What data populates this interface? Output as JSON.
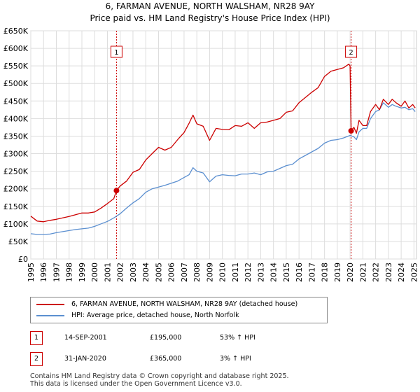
{
  "title_line1": "6, FARMAN AVENUE, NORTH WALSHAM, NR28 9AY",
  "title_line2": "Price paid vs. HM Land Registry's House Price Index (HPI)",
  "chart_data": {
    "type": "line",
    "title": "6, FARMAN AVENUE, NORTH WALSHAM, NR28 9AY — Price paid vs. HM Land Registry's House Price Index (HPI)",
    "xlabel": "",
    "ylabel": "",
    "xlim": [
      1995.0,
      2025.2
    ],
    "ylim": [
      0,
      650000
    ],
    "y_ticks": [
      0,
      50000,
      100000,
      150000,
      200000,
      250000,
      300000,
      350000,
      400000,
      450000,
      500000,
      550000,
      600000,
      650000
    ],
    "y_tick_labels": [
      "£0",
      "£50K",
      "£100K",
      "£150K",
      "£200K",
      "£250K",
      "£300K",
      "£350K",
      "£400K",
      "£450K",
      "£500K",
      "£550K",
      "£600K",
      "£650K"
    ],
    "x_ticks": [
      1995,
      1996,
      1997,
      1998,
      1999,
      2000,
      2001,
      2002,
      2003,
      2004,
      2005,
      2006,
      2007,
      2008,
      2009,
      2010,
      2011,
      2012,
      2013,
      2014,
      2015,
      2016,
      2017,
      2018,
      2019,
      2020,
      2021,
      2022,
      2023,
      2024,
      2025
    ],
    "x_tick_labels": [
      "1995",
      "1996",
      "1997",
      "1998",
      "1999",
      "2000",
      "2001",
      "2002",
      "2003",
      "2004",
      "2005",
      "2006",
      "2007",
      "2008",
      "2009",
      "2010",
      "2011",
      "2012",
      "2013",
      "2014",
      "2015",
      "2016",
      "2017",
      "2018",
      "2019",
      "2020",
      "2021",
      "2022",
      "2023",
      "2024",
      "2025"
    ],
    "grid": true,
    "legend_position": "below",
    "series": [
      {
        "name": "6, FARMAN AVENUE, NORTH WALSHAM, NR28 9AY (detached house)",
        "color": "#cc0000",
        "x": [
          1995.0,
          1995.5,
          1996.0,
          1996.5,
          1997.0,
          1997.5,
          1998.0,
          1998.5,
          1999.0,
          1999.5,
          2000.0,
          2000.5,
          2001.0,
          2001.5,
          2001.71,
          2002.0,
          2002.5,
          2003.0,
          2003.5,
          2004.0,
          2004.5,
          2005.0,
          2005.5,
          2006.0,
          2006.5,
          2007.0,
          2007.4,
          2007.7,
          2008.0,
          2008.5,
          2009.0,
          2009.5,
          2010.0,
          2010.5,
          2011.0,
          2011.5,
          2012.0,
          2012.5,
          2013.0,
          2013.5,
          2014.0,
          2014.5,
          2015.0,
          2015.5,
          2016.0,
          2016.5,
          2017.0,
          2017.5,
          2018.0,
          2018.5,
          2019.0,
          2019.5,
          2019.9,
          2020.0,
          2020.08,
          2020.3,
          2020.5,
          2020.7,
          2021.0,
          2021.3,
          2021.6,
          2022.0,
          2022.3,
          2022.6,
          2023.0,
          2023.3,
          2023.6,
          2024.0,
          2024.3,
          2024.6,
          2024.9,
          2025.1
        ],
        "values": [
          122000,
          108000,
          106000,
          110000,
          113000,
          117000,
          121000,
          126000,
          131000,
          131000,
          134000,
          145000,
          158000,
          172000,
          195000,
          208000,
          222000,
          247000,
          255000,
          282000,
          300000,
          318000,
          310000,
          318000,
          340000,
          360000,
          387000,
          410000,
          385000,
          378000,
          338000,
          372000,
          369000,
          368000,
          380000,
          378000,
          388000,
          372000,
          388000,
          390000,
          395000,
          400000,
          418000,
          422000,
          445000,
          460000,
          475000,
          488000,
          520000,
          535000,
          540000,
          545000,
          555000,
          550000,
          365000,
          375000,
          358000,
          395000,
          380000,
          380000,
          420000,
          440000,
          425000,
          455000,
          440000,
          455000,
          445000,
          435000,
          450000,
          430000,
          440000,
          430000
        ]
      },
      {
        "name": "HPI: Average price, detached house, North Norfolk",
        "color": "#5b8fd0",
        "x": [
          1995.0,
          1995.5,
          1996.0,
          1996.5,
          1997.0,
          1997.5,
          1998.0,
          1998.5,
          1999.0,
          1999.5,
          2000.0,
          2000.5,
          2001.0,
          2001.5,
          2002.0,
          2002.5,
          2003.0,
          2003.5,
          2004.0,
          2004.5,
          2005.0,
          2005.5,
          2006.0,
          2006.5,
          2007.0,
          2007.4,
          2007.7,
          2008.0,
          2008.5,
          2009.0,
          2009.5,
          2010.0,
          2010.5,
          2011.0,
          2011.5,
          2012.0,
          2012.5,
          2013.0,
          2013.5,
          2014.0,
          2014.5,
          2015.0,
          2015.5,
          2016.0,
          2016.5,
          2017.0,
          2017.5,
          2018.0,
          2018.5,
          2019.0,
          2019.5,
          2020.0,
          2020.3,
          2020.5,
          2020.7,
          2021.0,
          2021.3,
          2021.6,
          2022.0,
          2022.3,
          2022.6,
          2023.0,
          2023.3,
          2023.6,
          2024.0,
          2024.3,
          2024.6,
          2024.9,
          2025.1
        ],
        "values": [
          72000,
          70000,
          70000,
          71000,
          75000,
          78000,
          81000,
          84000,
          86000,
          88000,
          93000,
          100000,
          107000,
          117000,
          129000,
          145000,
          160000,
          172000,
          190000,
          200000,
          205000,
          210000,
          216000,
          222000,
          232000,
          240000,
          260000,
          250000,
          245000,
          220000,
          236000,
          240000,
          238000,
          237000,
          242000,
          242000,
          245000,
          240000,
          248000,
          250000,
          258000,
          266000,
          270000,
          285000,
          295000,
          305000,
          315000,
          330000,
          338000,
          340000,
          345000,
          352000,
          348000,
          340000,
          362000,
          372000,
          372000,
          400000,
          420000,
          425000,
          445000,
          432000,
          440000,
          435000,
          430000,
          432000,
          425000,
          428000,
          420000
        ]
      }
    ],
    "annotations": [
      {
        "label": "1",
        "x": 2001.71,
        "y": 195000
      },
      {
        "label": "2",
        "x": 2020.08,
        "y": 365000
      }
    ]
  },
  "legend": {
    "property": "6, FARMAN AVENUE, NORTH WALSHAM, NR28 9AY (detached house)",
    "hpi": "HPI: Average price, detached house, North Norfolk"
  },
  "sales": [
    {
      "num": "1",
      "date": "14-SEP-2001",
      "price": "£195,000",
      "hpi": "53% ↑ HPI"
    },
    {
      "num": "2",
      "date": "31-JAN-2020",
      "price": "£365,000",
      "hpi": "3% ↑ HPI"
    }
  ],
  "footer_line1": "Contains HM Land Registry data © Crown copyright and database right 2025.",
  "footer_line2": "This data is licensed under the Open Government Licence v3.0.",
  "colors": {
    "property": "#cc0000",
    "hpi": "#5b8fd0",
    "grid": "#dddddd",
    "plot_bg": "#ffffff"
  }
}
